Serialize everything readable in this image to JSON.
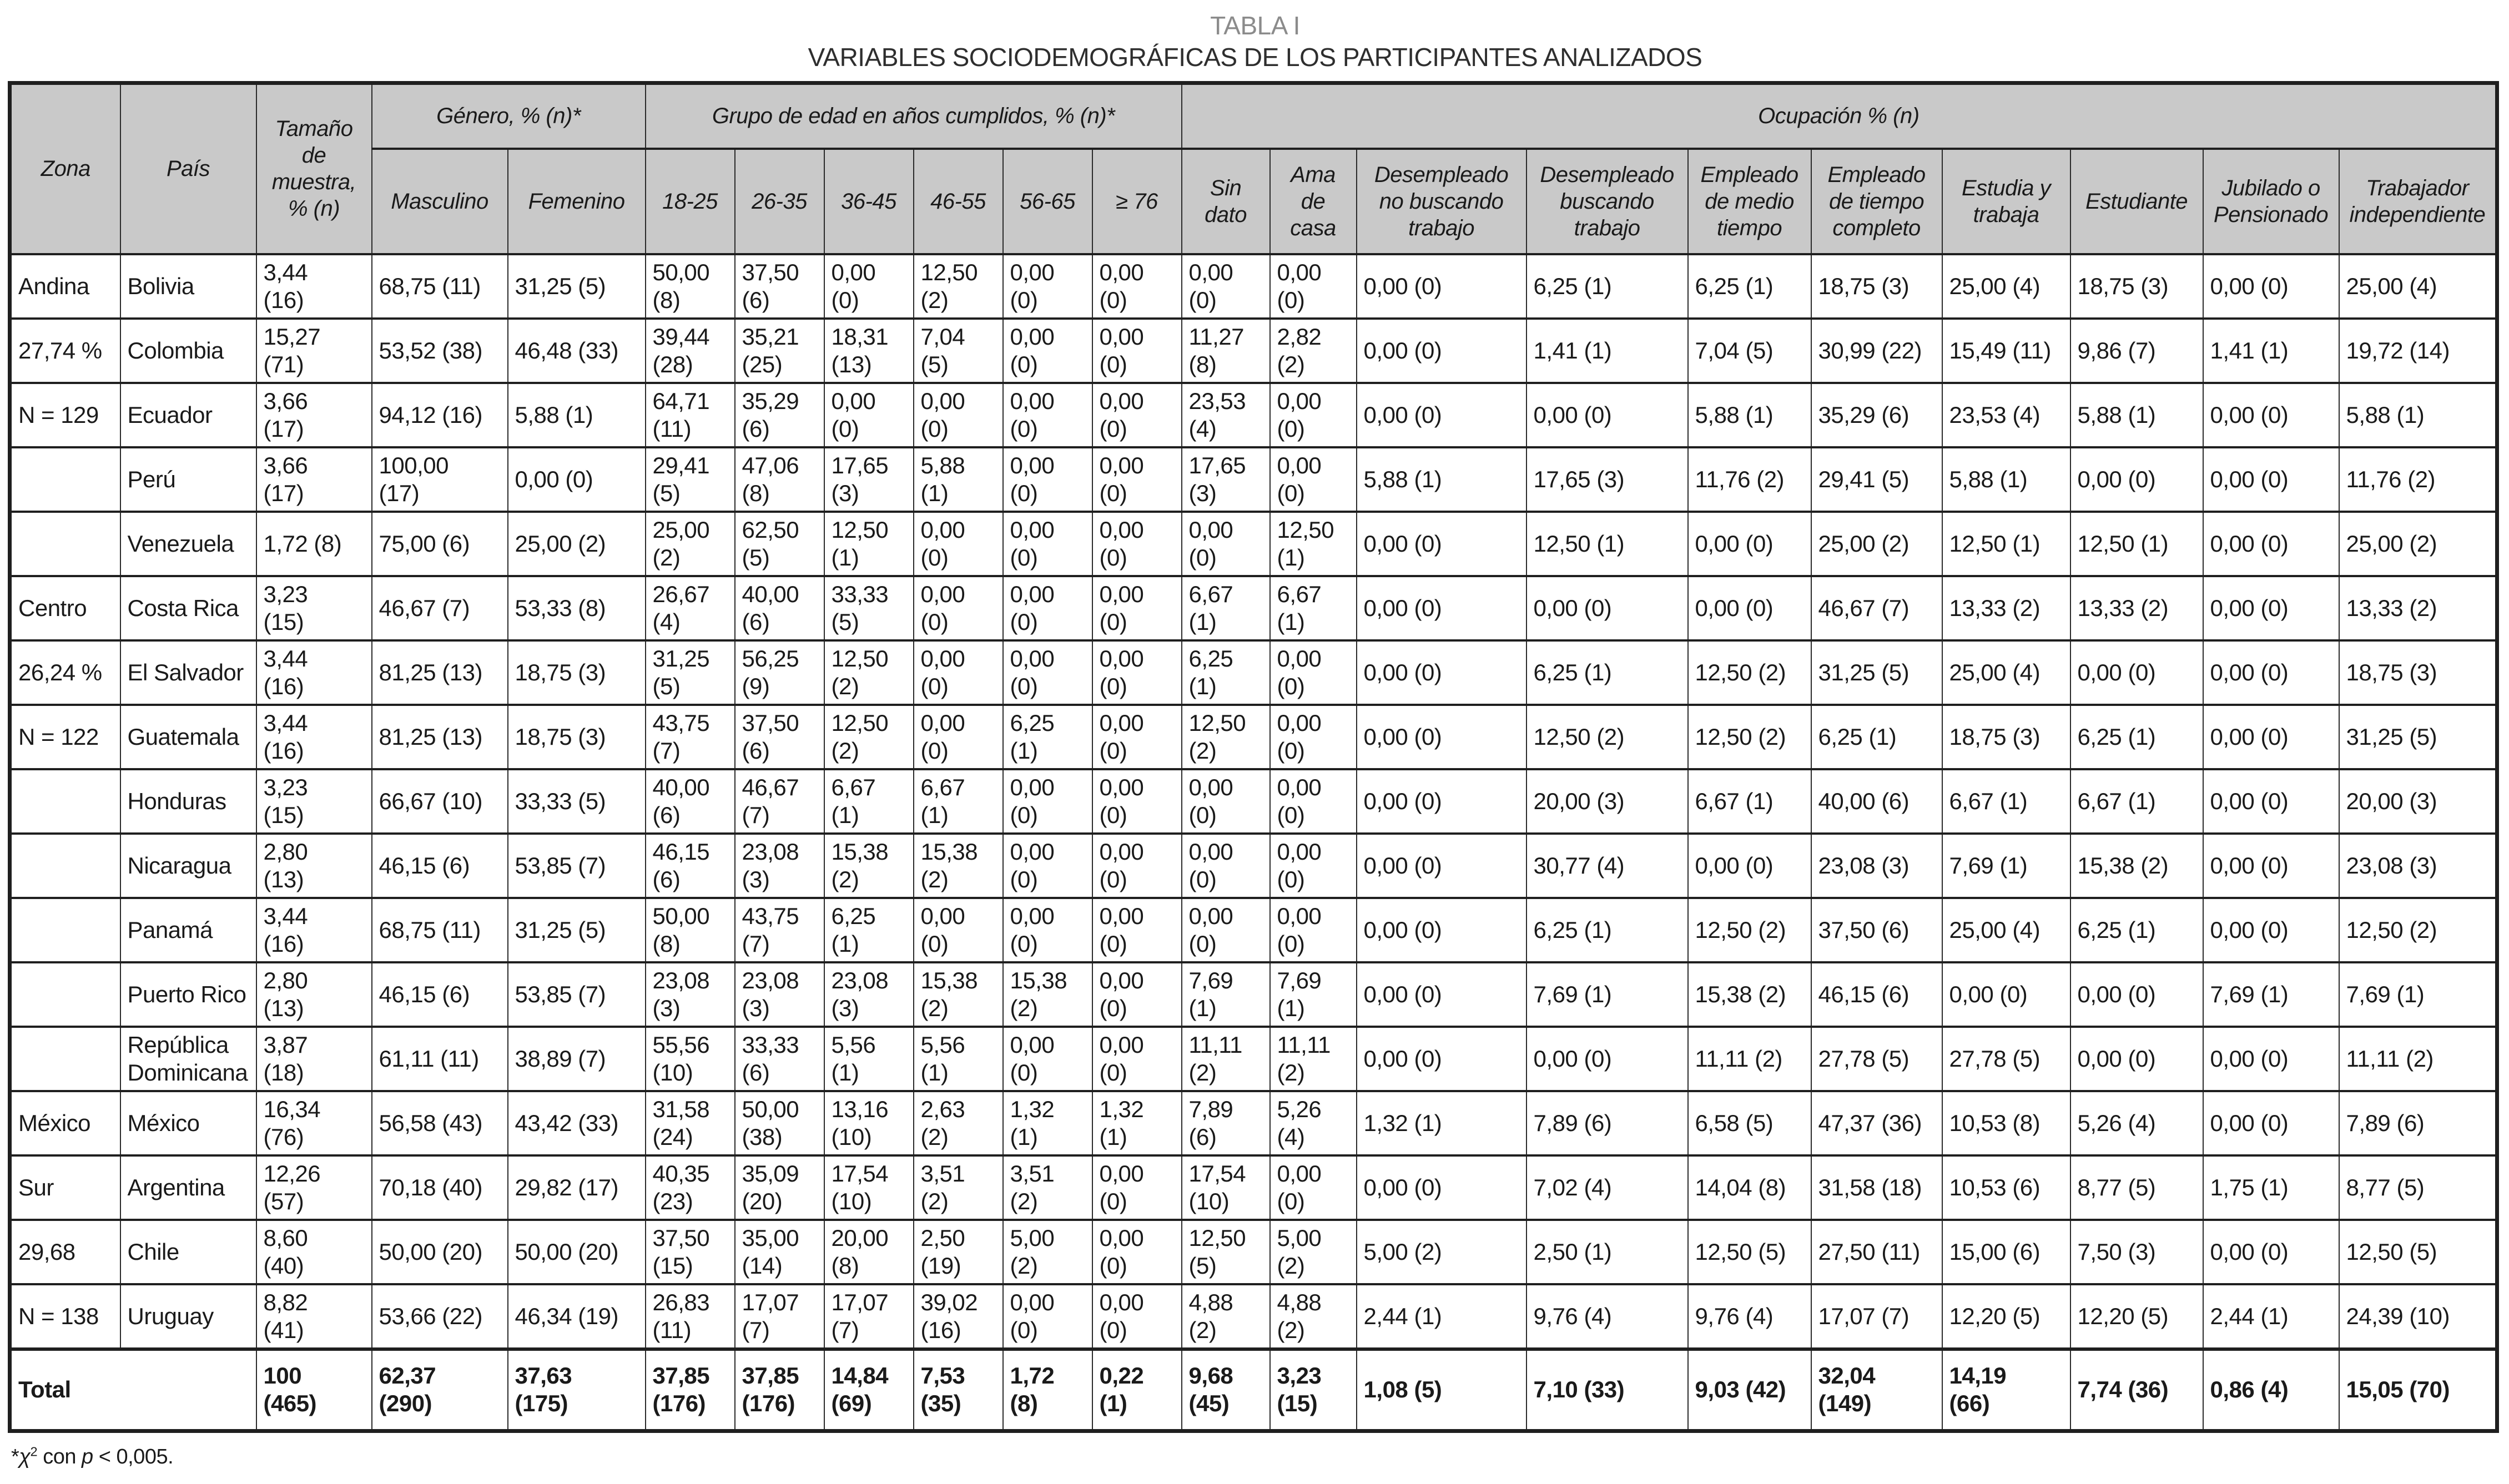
{
  "title": {
    "line1": "TABLA I",
    "line2": "VARIABLES SOCIODEMOGRÁFICAS DE LOS PARTICIPANTES ANALIZADOS"
  },
  "table": {
    "header": {
      "zona": "Zona",
      "pais": "País",
      "tamano": "Tamaño\nde\nmuestra,\n% (n)",
      "genero": "Género, % (n)*",
      "edad": "Grupo de edad en años cumplidos, % (n)*",
      "ocupacion": "Ocupación % (n)",
      "sub": [
        "Masculino",
        "Femenino",
        "18-25",
        "26-35",
        "36-45",
        "46-55",
        "56-65",
        "≥ 76",
        "Sin\ndato",
        "Ama\nde\ncasa",
        "Desempleado\nno buscando\ntrabajo",
        "Desempleado\nbuscando\ntrabajo",
        "Empleado\nde medio\ntiempo",
        "Empleado\nde tiempo\ncompleto",
        "Estudia y\ntrabaja",
        "Estudiante",
        "Jubilado o\nPensionado",
        "Trabajador\nindependiente"
      ]
    },
    "rows": [
      {
        "zona": "Andina",
        "pais": "Bolivia",
        "cells": [
          "3,44\n(16)",
          "68,75 (11)",
          "31,25 (5)",
          "50,00\n(8)",
          "37,50\n(6)",
          "0,00\n(0)",
          "12,50\n(2)",
          "0,00\n(0)",
          "0,00\n(0)",
          "0,00\n(0)",
          "0,00\n(0)",
          "0,00 (0)",
          "6,25 (1)",
          "6,25 (1)",
          "18,75 (3)",
          "25,00 (4)",
          "18,75 (3)",
          "0,00 (0)",
          "25,00 (4)"
        ]
      },
      {
        "zona": "27,74 %",
        "pais": "Colombia",
        "cells": [
          "15,27\n(71)",
          "53,52 (38)",
          "46,48 (33)",
          "39,44\n(28)",
          "35,21\n(25)",
          "18,31\n(13)",
          "7,04\n(5)",
          "0,00\n(0)",
          "0,00\n(0)",
          "11,27\n(8)",
          "2,82\n(2)",
          "0,00 (0)",
          "1,41 (1)",
          "7,04 (5)",
          "30,99 (22)",
          "15,49 (11)",
          "9,86 (7)",
          "1,41 (1)",
          "19,72 (14)"
        ]
      },
      {
        "zona": "N = 129",
        "pais": "Ecuador",
        "cells": [
          "3,66\n(17)",
          "94,12 (16)",
          "5,88 (1)",
          "64,71\n(11)",
          "35,29\n(6)",
          "0,00\n(0)",
          "0,00\n(0)",
          "0,00\n(0)",
          "0,00\n(0)",
          "23,53\n(4)",
          "0,00\n(0)",
          "0,00 (0)",
          "0,00 (0)",
          "5,88 (1)",
          "35,29 (6)",
          "23,53 (4)",
          "5,88 (1)",
          "0,00 (0)",
          "5,88 (1)"
        ]
      },
      {
        "zona": "",
        "pais": "Perú",
        "cells": [
          "3,66\n(17)",
          "100,00\n(17)",
          "0,00 (0)",
          "29,41\n(5)",
          "47,06\n(8)",
          "17,65\n(3)",
          "5,88\n(1)",
          "0,00\n(0)",
          "0,00\n(0)",
          "17,65\n(3)",
          "0,00\n(0)",
          "5,88 (1)",
          "17,65 (3)",
          "11,76 (2)",
          "29,41 (5)",
          "5,88 (1)",
          "0,00 (0)",
          "0,00 (0)",
          "11,76 (2)"
        ]
      },
      {
        "zona": "",
        "pais": "Venezuela",
        "cells": [
          "1,72 (8)",
          "75,00 (6)",
          "25,00 (2)",
          "25,00\n(2)",
          "62,50\n(5)",
          "12,50\n(1)",
          "0,00\n(0)",
          "0,00\n(0)",
          "0,00\n(0)",
          "0,00\n(0)",
          "12,50\n(1)",
          "0,00 (0)",
          "12,50 (1)",
          "0,00 (0)",
          "25,00 (2)",
          "12,50 (1)",
          "12,50 (1)",
          "0,00 (0)",
          "25,00 (2)"
        ]
      },
      {
        "zona": "Centro",
        "pais": "Costa Rica",
        "cells": [
          "3,23\n(15)",
          "46,67 (7)",
          "53,33 (8)",
          "26,67\n(4)",
          "40,00\n(6)",
          "33,33\n(5)",
          "0,00\n(0)",
          "0,00\n(0)",
          "0,00\n(0)",
          "6,67\n(1)",
          "6,67\n(1)",
          "0,00 (0)",
          "0,00 (0)",
          "0,00 (0)",
          "46,67 (7)",
          "13,33 (2)",
          "13,33 (2)",
          "0,00 (0)",
          "13,33 (2)"
        ]
      },
      {
        "zona": "26,24 %",
        "pais": "El Salvador",
        "cells": [
          "3,44\n(16)",
          "81,25 (13)",
          "18,75 (3)",
          "31,25\n(5)",
          "56,25\n(9)",
          "12,50\n(2)",
          "0,00\n(0)",
          "0,00\n(0)",
          "0,00\n(0)",
          "6,25\n(1)",
          "0,00\n(0)",
          "0,00 (0)",
          "6,25 (1)",
          "12,50 (2)",
          "31,25 (5)",
          "25,00 (4)",
          "0,00 (0)",
          "0,00 (0)",
          "18,75 (3)"
        ]
      },
      {
        "zona": "N = 122",
        "pais": "Guatemala",
        "cells": [
          "3,44\n(16)",
          "81,25 (13)",
          "18,75 (3)",
          "43,75\n(7)",
          "37,50\n(6)",
          "12,50\n(2)",
          "0,00\n(0)",
          "6,25\n(1)",
          "0,00\n(0)",
          "12,50\n(2)",
          "0,00\n(0)",
          "0,00 (0)",
          "12,50 (2)",
          "12,50 (2)",
          "6,25 (1)",
          "18,75 (3)",
          "6,25 (1)",
          "0,00 (0)",
          "31,25 (5)"
        ]
      },
      {
        "zona": "",
        "pais": "Honduras",
        "cells": [
          "3,23\n(15)",
          "66,67 (10)",
          "33,33 (5)",
          "40,00\n(6)",
          "46,67\n(7)",
          "6,67\n(1)",
          "6,67\n(1)",
          "0,00\n(0)",
          "0,00\n(0)",
          "0,00\n(0)",
          "0,00\n(0)",
          "0,00 (0)",
          "20,00 (3)",
          "6,67 (1)",
          "40,00 (6)",
          "6,67 (1)",
          "6,67 (1)",
          "0,00 (0)",
          "20,00 (3)"
        ]
      },
      {
        "zona": "",
        "pais": "Nicaragua",
        "cells": [
          "2,80\n(13)",
          "46,15 (6)",
          "53,85 (7)",
          "46,15\n(6)",
          "23,08\n(3)",
          "15,38\n(2)",
          "15,38\n(2)",
          "0,00\n(0)",
          "0,00\n(0)",
          "0,00\n(0)",
          "0,00\n(0)",
          "0,00 (0)",
          "30,77 (4)",
          "0,00 (0)",
          "23,08 (3)",
          "7,69 (1)",
          "15,38 (2)",
          "0,00 (0)",
          "23,08 (3)"
        ]
      },
      {
        "zona": "",
        "pais": "Panamá",
        "cells": [
          "3,44\n(16)",
          "68,75 (11)",
          "31,25 (5)",
          "50,00\n(8)",
          "43,75\n(7)",
          "6,25\n(1)",
          "0,00\n(0)",
          "0,00\n(0)",
          "0,00\n(0)",
          "0,00\n(0)",
          "0,00\n(0)",
          "0,00 (0)",
          "6,25 (1)",
          "12,50 (2)",
          "37,50 (6)",
          "25,00 (4)",
          "6,25 (1)",
          "0,00 (0)",
          "12,50 (2)"
        ]
      },
      {
        "zona": "",
        "pais": "Puerto Rico",
        "cells": [
          "2,80\n(13)",
          "46,15 (6)",
          "53,85 (7)",
          "23,08\n(3)",
          "23,08\n(3)",
          "23,08\n(3)",
          "15,38\n(2)",
          "15,38\n(2)",
          "0,00\n(0)",
          "7,69\n(1)",
          "7,69\n(1)",
          "0,00 (0)",
          "7,69 (1)",
          "15,38 (2)",
          "46,15 (6)",
          "0,00 (0)",
          "0,00 (0)",
          "7,69 (1)",
          "7,69 (1)"
        ]
      },
      {
        "zona": "",
        "pais": "República\nDominicana",
        "cells": [
          "3,87\n(18)",
          "61,11 (11)",
          "38,89 (7)",
          "55,56\n(10)",
          "33,33\n(6)",
          "5,56\n(1)",
          "5,56\n(1)",
          "0,00\n(0)",
          "0,00\n(0)",
          "11,11\n(2)",
          "11,11\n(2)",
          "0,00 (0)",
          "0,00 (0)",
          "11,11 (2)",
          "27,78 (5)",
          "27,78 (5)",
          "0,00 (0)",
          "0,00 (0)",
          "11,11 (2)"
        ]
      },
      {
        "zona": "México",
        "pais": "México",
        "cells": [
          "16,34\n(76)",
          "56,58 (43)",
          "43,42 (33)",
          "31,58\n(24)",
          "50,00\n(38)",
          "13,16\n(10)",
          "2,63\n(2)",
          "1,32\n(1)",
          "1,32\n(1)",
          "7,89\n(6)",
          "5,26\n(4)",
          "1,32 (1)",
          "7,89 (6)",
          "6,58 (5)",
          "47,37 (36)",
          "10,53 (8)",
          "5,26 (4)",
          "0,00 (0)",
          "7,89 (6)"
        ]
      },
      {
        "zona": "Sur",
        "pais": "Argentina",
        "cells": [
          "12,26\n(57)",
          "70,18 (40)",
          "29,82 (17)",
          "40,35\n(23)",
          "35,09\n(20)",
          "17,54\n(10)",
          "3,51\n(2)",
          "3,51\n(2)",
          "0,00\n(0)",
          "17,54\n(10)",
          "0,00\n(0)",
          "0,00 (0)",
          "7,02 (4)",
          "14,04 (8)",
          "31,58 (18)",
          "10,53 (6)",
          "8,77 (5)",
          "1,75 (1)",
          "8,77 (5)"
        ]
      },
      {
        "zona": "29,68",
        "pais": "Chile",
        "cells": [
          "8,60\n(40)",
          "50,00 (20)",
          "50,00 (20)",
          "37,50\n(15)",
          "35,00\n(14)",
          "20,00\n(8)",
          "2,50\n(19)",
          "5,00\n(2)",
          "0,00\n(0)",
          "12,50\n(5)",
          "5,00\n(2)",
          "5,00 (2)",
          "2,50 (1)",
          "12,50 (5)",
          "27,50 (11)",
          "15,00 (6)",
          "7,50 (3)",
          "0,00 (0)",
          "12,50 (5)"
        ]
      },
      {
        "zona": "N = 138",
        "pais": "Uruguay",
        "cells": [
          "8,82\n(41)",
          "53,66 (22)",
          "46,34 (19)",
          "26,83\n(11)",
          "17,07\n(7)",
          "17,07\n(7)",
          "39,02\n(16)",
          "0,00\n(0)",
          "0,00\n(0)",
          "4,88\n(2)",
          "4,88\n(2)",
          "2,44 (1)",
          "9,76 (4)",
          "9,76 (4)",
          "17,07 (7)",
          "12,20 (5)",
          "12,20 (5)",
          "2,44 (1)",
          "24,39 (10)"
        ]
      }
    ],
    "total": {
      "label": "Total",
      "cells": [
        "100\n(465)",
        "62,37\n(290)",
        "37,63\n(175)",
        "37,85\n(176)",
        "37,85\n(176)",
        "14,84\n(69)",
        "7,53\n(35)",
        "1,72\n(8)",
        "0,22\n(1)",
        "9,68\n(45)",
        "3,23\n(15)",
        "1,08 (5)",
        "7,10 (33)",
        "9,03 (42)",
        "32,04\n(149)",
        "14,19\n(66)",
        "7,74 (36)",
        "0,86 (4)",
        "15,05 (70)"
      ]
    }
  },
  "footnote": {
    "star": "*",
    "chi": "χ",
    "exp": "2",
    "mid": " con ",
    "p": "p",
    "tail": " < 0,005."
  },
  "colors": {
    "header_bg": "#c9c9c9",
    "border": "#1f1f1f",
    "title_gray": "#8b8b8b",
    "text": "#1a1a1a"
  }
}
